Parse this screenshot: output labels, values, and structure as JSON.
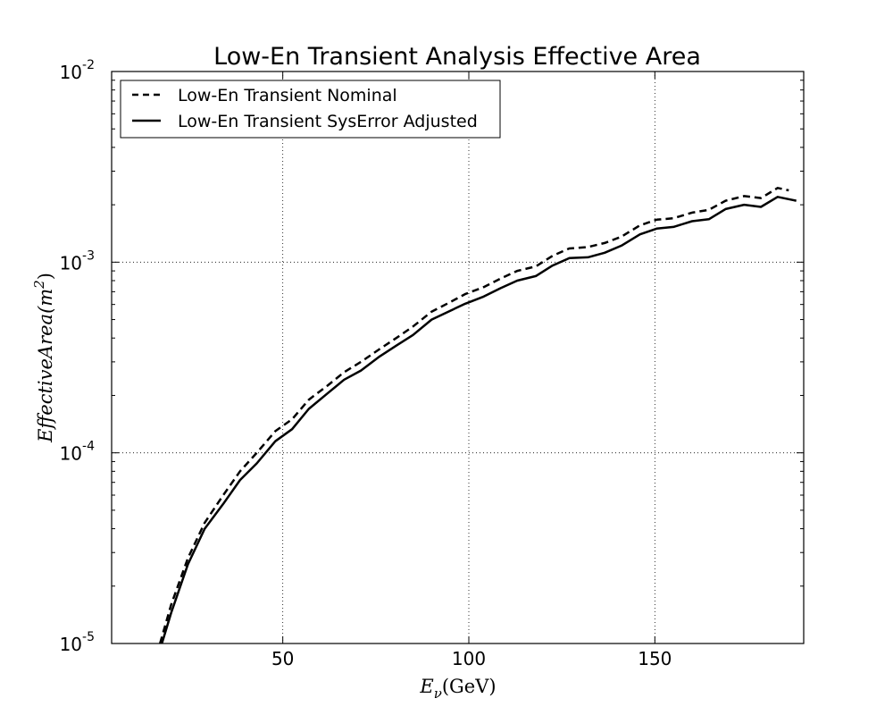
{
  "chart_data": {
    "type": "line",
    "title": "Low-En Transient Analysis Effective Area",
    "xlabel": "E_ν(GeV)",
    "xlabel_main": "E",
    "xlabel_sub": "ν",
    "xlabel_rest": "(GeV)",
    "ylabel": "EffectiveArea(m^2)",
    "ylabel_main": "EffectiveArea(m",
    "ylabel_sup": "2",
    "ylabel_close": ")",
    "xlim": [
      4,
      190
    ],
    "ylim": [
      1e-05,
      0.01
    ],
    "yscale": "log",
    "grid": true,
    "legend_position": "top-left",
    "xticks": [
      50,
      100,
      150
    ],
    "xtick_labels": [
      "50",
      "100",
      "150"
    ],
    "yticks": [
      1e-05,
      0.0001,
      0.001,
      0.01
    ],
    "ytick_base": "10",
    "ytick_exponents": [
      "-5",
      "-4",
      "-3",
      "-2"
    ],
    "series": [
      {
        "name": "Low-En Transient Nominal",
        "style": "dashed",
        "color": "#000000",
        "x": [
          17,
          20,
          24.5,
          29,
          34,
          38.5,
          43,
          48,
          52.5,
          57,
          62,
          66.5,
          71,
          76,
          80.5,
          85,
          90,
          94.5,
          99,
          104,
          108.5,
          113,
          118,
          122.5,
          127,
          132,
          136.5,
          141,
          146,
          150.5,
          155,
          160,
          164.5,
          169,
          174,
          178.5,
          183,
          186
        ],
        "y": [
          1e-05,
          1.6e-05,
          2.8e-05,
          4.3e-05,
          6e-05,
          8e-05,
          0.0001,
          0.00013,
          0.00015,
          0.00019,
          0.000225,
          0.000265,
          0.0003,
          0.00035,
          0.0004,
          0.00046,
          0.00055,
          0.00061,
          0.00068,
          0.00074,
          0.00082,
          0.0009,
          0.00095,
          0.00108,
          0.00118,
          0.0012,
          0.00126,
          0.00136,
          0.00156,
          0.00167,
          0.0017,
          0.00182,
          0.00188,
          0.0021,
          0.00222,
          0.00217,
          0.00245,
          0.00238
        ]
      },
      {
        "name": "Low-En Transient SysError Adjusted",
        "style": "solid",
        "color": "#000000",
        "x": [
          17.5,
          20,
          24.5,
          29,
          34,
          38.5,
          43,
          48,
          52.5,
          57,
          62,
          66.5,
          71,
          76,
          80.5,
          85,
          90,
          94.5,
          99,
          104,
          108.5,
          113,
          118,
          122.5,
          127,
          132,
          136.5,
          141,
          146,
          150.5,
          155,
          160,
          164.5,
          169,
          174,
          178.5,
          183,
          188
        ],
        "y": [
          1e-05,
          1.45e-05,
          2.6e-05,
          4e-05,
          5.4e-05,
          7.2e-05,
          8.8e-05,
          0.000115,
          0.000133,
          0.00017,
          0.000205,
          0.000242,
          0.00027,
          0.00032,
          0.000365,
          0.000415,
          0.0005,
          0.00055,
          0.000605,
          0.00066,
          0.00073,
          0.0008,
          0.000845,
          0.00096,
          0.00105,
          0.00106,
          0.00112,
          0.00122,
          0.0014,
          0.0015,
          0.00153,
          0.00164,
          0.00168,
          0.0019,
          0.002,
          0.00195,
          0.0022,
          0.0021
        ]
      }
    ]
  }
}
